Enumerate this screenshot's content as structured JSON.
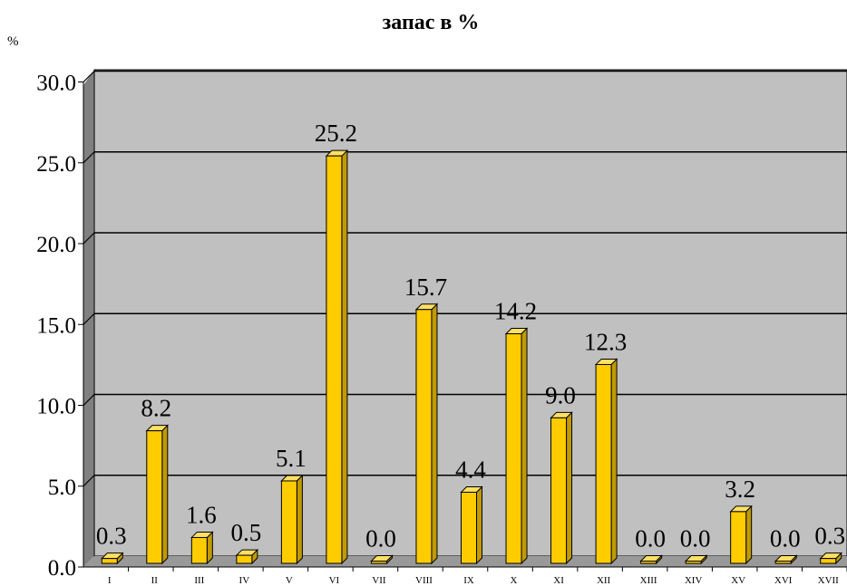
{
  "chart_data": {
    "type": "bar",
    "title": "запас в %",
    "ylabel": "%",
    "xlabel": "",
    "ylim": [
      0,
      30
    ],
    "yticks": [
      "0.0",
      "5.0",
      "10.0",
      "15.0",
      "20.0",
      "25.0",
      "30.0"
    ],
    "grid": true,
    "legend": "none",
    "categories": [
      "I",
      "II",
      "III",
      "IV",
      "V",
      "VI",
      "VII",
      "VIII",
      "IX",
      "X",
      "XI",
      "XII",
      "XIII",
      "XIV",
      "XV",
      "XVI",
      "XVII"
    ],
    "values": [
      0.3,
      8.2,
      1.6,
      0.5,
      5.1,
      25.2,
      0.0,
      15.7,
      4.4,
      14.2,
      9.0,
      12.3,
      0.0,
      0.0,
      3.2,
      0.0,
      0.3
    ],
    "data_labels": [
      "0.3",
      "8.2",
      "1.6",
      "0.5",
      "5.1",
      "25.2",
      "0.0",
      "15.7",
      "4.4",
      "14.2",
      "9.0",
      "12.3",
      "0.0",
      "0.0",
      "3.2",
      "0.0",
      "0.3"
    ],
    "colors": {
      "bar_front": "#ffcc00",
      "bar_side": "#c09a00",
      "bar_top": "#ffe066",
      "bar_edge": "#000000",
      "plot_back": "#c0c0c0",
      "plot_floor": "#999999",
      "plot_side_wall": "#808080",
      "gridline": "#000000"
    }
  }
}
